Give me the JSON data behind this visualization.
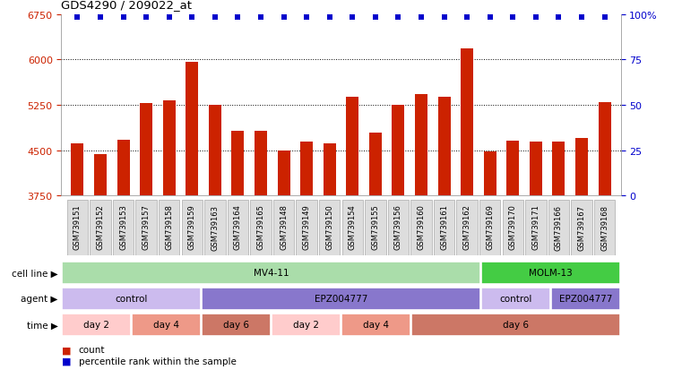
{
  "title": "GDS4290 / 209022_at",
  "samples": [
    "GSM739151",
    "GSM739152",
    "GSM739153",
    "GSM739157",
    "GSM739158",
    "GSM739159",
    "GSM739163",
    "GSM739164",
    "GSM739165",
    "GSM739148",
    "GSM739149",
    "GSM739150",
    "GSM739154",
    "GSM739155",
    "GSM739156",
    "GSM739160",
    "GSM739161",
    "GSM739162",
    "GSM739169",
    "GSM739170",
    "GSM739171",
    "GSM739166",
    "GSM739167",
    "GSM739168"
  ],
  "counts": [
    4620,
    4430,
    4680,
    5280,
    5330,
    5960,
    5250,
    4820,
    4820,
    4490,
    4640,
    4610,
    5380,
    4790,
    5250,
    5430,
    5390,
    6180,
    4480,
    4660,
    4640,
    4640,
    4700,
    5300
  ],
  "ylim_left": [
    3750,
    6750
  ],
  "yticks_left": [
    3750,
    4500,
    5250,
    6000,
    6750
  ],
  "ylim_right": [
    0,
    100
  ],
  "yticks_right": [
    0,
    25,
    50,
    75,
    100
  ],
  "bar_color": "#cc2200",
  "dot_color": "#0000cc",
  "bar_width": 0.55,
  "cell_line_segments": [
    {
      "label": "MV4-11",
      "start": 0,
      "end": 18,
      "color": "#aaddaa"
    },
    {
      "label": "MOLM-13",
      "start": 18,
      "end": 24,
      "color": "#44cc44"
    }
  ],
  "agent_segments": [
    {
      "label": "control",
      "start": 0,
      "end": 6,
      "color": "#ccbbee"
    },
    {
      "label": "EPZ004777",
      "start": 6,
      "end": 18,
      "color": "#8877cc"
    },
    {
      "label": "control",
      "start": 18,
      "end": 21,
      "color": "#ccbbee"
    },
    {
      "label": "EPZ004777",
      "start": 21,
      "end": 24,
      "color": "#8877cc"
    }
  ],
  "time_segments": [
    {
      "label": "day 2",
      "start": 0,
      "end": 3,
      "color": "#ffcccc"
    },
    {
      "label": "day 4",
      "start": 3,
      "end": 6,
      "color": "#ee9988"
    },
    {
      "label": "day 6",
      "start": 6,
      "end": 9,
      "color": "#cc7766"
    },
    {
      "label": "day 2",
      "start": 9,
      "end": 12,
      "color": "#ffcccc"
    },
    {
      "label": "day 4",
      "start": 12,
      "end": 15,
      "color": "#ee9988"
    },
    {
      "label": "day 6",
      "start": 15,
      "end": 24,
      "color": "#cc7766"
    }
  ],
  "row_labels": [
    "cell line",
    "agent",
    "time"
  ],
  "row_segment_keys": [
    "cell_line_segments",
    "agent_segments",
    "time_segments"
  ],
  "legend_items": [
    {
      "color": "#cc2200",
      "label": "count"
    },
    {
      "color": "#0000cc",
      "label": "percentile rank within the sample"
    }
  ],
  "xtick_bg": "#dddddd",
  "xtick_edge": "#aaaaaa",
  "plot_bg": "#ffffff"
}
